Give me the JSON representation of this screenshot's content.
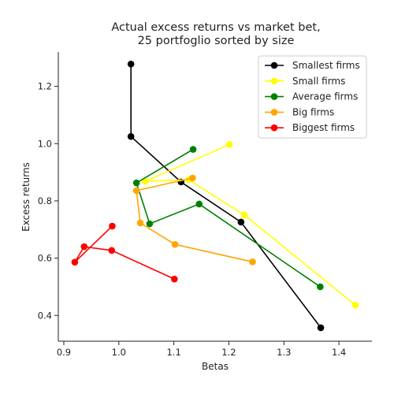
{
  "chart_data": {
    "type": "line",
    "title": "Actual excess returns vs market bet,\n25 portfoglio sorted by size",
    "xlabel": "Betas",
    "ylabel": "Excess returns",
    "xlim": [
      0.89,
      1.46
    ],
    "ylim": [
      0.31,
      1.32
    ],
    "xticks": [
      0.9,
      1.0,
      1.1,
      1.2,
      1.3,
      1.4
    ],
    "yticks": [
      0.4,
      0.6,
      0.8,
      1.0,
      1.2
    ],
    "xtick_labels": [
      "0.9",
      "1.0",
      "1.1",
      "1.2",
      "1.3",
      "1.4"
    ],
    "ytick_labels": [
      "0.4",
      "0.6",
      "0.8",
      "1.0",
      "1.2"
    ],
    "grid": false,
    "legend_position": "top-right",
    "series": [
      {
        "name": "Smallest firms",
        "color": "#000000",
        "points": [
          [
            1.022,
            1.278
          ],
          [
            1.022,
            1.025
          ],
          [
            1.113,
            0.866
          ],
          [
            1.222,
            0.726
          ],
          [
            1.367,
            0.357
          ]
        ]
      },
      {
        "name": "Small firms",
        "color": "#ffff00",
        "points": [
          [
            1.201,
            0.997
          ],
          [
            1.048,
            0.868
          ],
          [
            1.127,
            0.874
          ],
          [
            1.228,
            0.751
          ],
          [
            1.43,
            0.436
          ]
        ]
      },
      {
        "name": "Average firms",
        "color": "#008000",
        "points": [
          [
            1.135,
            0.98
          ],
          [
            1.032,
            0.863
          ],
          [
            1.056,
            0.72
          ],
          [
            1.146,
            0.789
          ],
          [
            1.366,
            0.5
          ]
        ]
      },
      {
        "name": "Big  firms",
        "color": "#ffa500",
        "points": [
          [
            1.134,
            0.88
          ],
          [
            1.032,
            0.836
          ],
          [
            1.039,
            0.723
          ],
          [
            1.102,
            0.648
          ],
          [
            1.243,
            0.587
          ]
        ]
      },
      {
        "name": "Biggest firms",
        "color": "#ff0000",
        "points": [
          [
            0.988,
            0.712
          ],
          [
            0.92,
            0.586
          ],
          [
            0.937,
            0.64
          ],
          [
            0.987,
            0.627
          ],
          [
            1.101,
            0.527
          ]
        ]
      }
    ]
  }
}
